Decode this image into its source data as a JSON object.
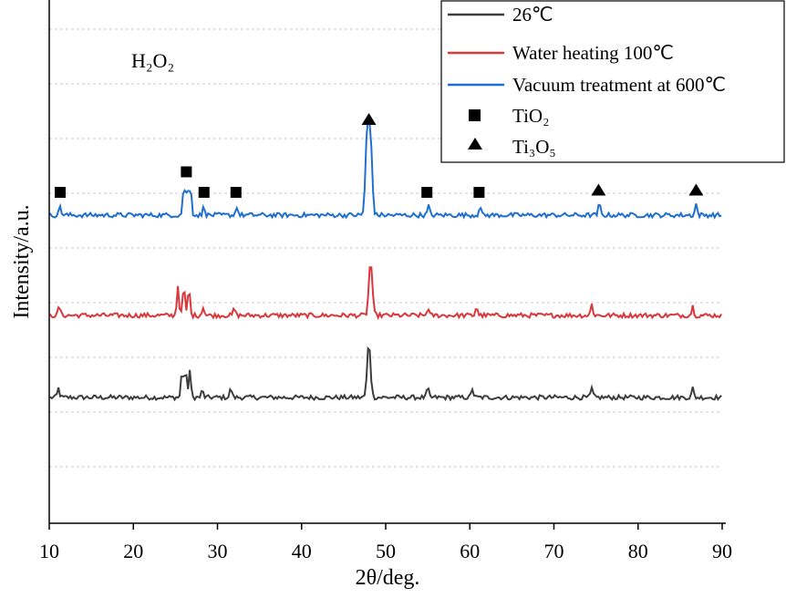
{
  "chart_data": {
    "type": "line",
    "annotation": "H₂O₂",
    "xlabel": "2θ/deg.",
    "ylabel": "Intensity/a.u.",
    "xlim": [
      10,
      90
    ],
    "x_ticks": [
      "10",
      "20",
      "30",
      "40",
      "50",
      "60",
      "70",
      "80",
      "90"
    ],
    "y_ticks_labeled": false,
    "grid": "horizontal-dashed",
    "legend_position": "top-right",
    "series": [
      {
        "name": "26℃",
        "color": "#3d3d3d",
        "baseline": 0,
        "peaks": [
          [
            11.1,
            0.2
          ],
          [
            25.8,
            0.6
          ],
          [
            26.2,
            0.6
          ],
          [
            26.7,
            0.6
          ],
          [
            28.2,
            0.15
          ],
          [
            31.6,
            0.2
          ],
          [
            48.0,
            1.2
          ],
          [
            55.0,
            0.2
          ],
          [
            60.3,
            0.2
          ],
          [
            74.5,
            0.2
          ],
          [
            86.5,
            0.2
          ]
        ]
      },
      {
        "name": "Water heating 100℃",
        "color": "#d9373b",
        "baseline": 1.8,
        "peaks": [
          [
            11.2,
            0.2
          ],
          [
            25.3,
            0.65
          ],
          [
            26.0,
            0.65
          ],
          [
            26.6,
            0.6
          ],
          [
            28.3,
            0.2
          ],
          [
            32.0,
            0.15
          ],
          [
            48.2,
            1.2
          ],
          [
            55.0,
            0.15
          ],
          [
            60.8,
            0.2
          ],
          [
            74.5,
            0.25
          ],
          [
            86.5,
            0.2
          ]
        ]
      },
      {
        "name": "Vacuum treatment at 600℃",
        "color": "#1f6fd1",
        "baseline": 4.0,
        "peaks": [
          [
            11.3,
            0.2
          ],
          [
            26.0,
            0.65
          ],
          [
            26.4,
            0.65
          ],
          [
            26.8,
            0.65
          ],
          [
            28.4,
            0.2
          ],
          [
            32.3,
            0.2
          ],
          [
            47.8,
            1.8
          ],
          [
            48.2,
            1.6
          ],
          [
            55.1,
            0.2
          ],
          [
            61.2,
            0.2
          ],
          [
            75.4,
            0.25
          ],
          [
            86.9,
            0.25
          ]
        ]
      }
    ],
    "markers": [
      {
        "name": "TiO₂",
        "shape": "square",
        "positions": [
          11.3,
          26.3,
          28.4,
          32.2,
          54.9,
          61.1
        ]
      },
      {
        "name": "Ti₃O₅",
        "shape": "triangle",
        "positions": [
          48.0,
          75.3,
          86.9
        ]
      }
    ]
  }
}
